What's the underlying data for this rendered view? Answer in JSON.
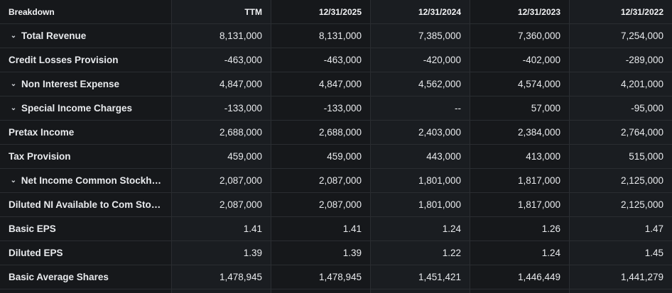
{
  "columns": [
    "Breakdown",
    "TTM",
    "12/31/2025",
    "12/31/2024",
    "12/31/2023",
    "12/31/2022"
  ],
  "rows": [
    {
      "label": "Total Revenue",
      "expand": "⌄",
      "values": [
        "8,131,000",
        "8,131,000",
        "7,385,000",
        "7,360,000",
        "7,254,000"
      ]
    },
    {
      "label": "Credit Losses Provision",
      "expand": "",
      "values": [
        "-463,000",
        "-463,000",
        "-420,000",
        "-402,000",
        "-289,000"
      ]
    },
    {
      "label": "Non Interest Expense",
      "expand": "⌄",
      "values": [
        "4,847,000",
        "4,847,000",
        "4,562,000",
        "4,574,000",
        "4,201,000"
      ]
    },
    {
      "label": "Special Income Charges",
      "expand": "⌄",
      "values": [
        "-133,000",
        "-133,000",
        "--",
        "57,000",
        "-95,000"
      ]
    },
    {
      "label": "Pretax Income",
      "expand": "",
      "values": [
        "2,688,000",
        "2,688,000",
        "2,403,000",
        "2,384,000",
        "2,764,000"
      ]
    },
    {
      "label": "Tax Provision",
      "expand": "",
      "values": [
        "459,000",
        "459,000",
        "443,000",
        "413,000",
        "515,000"
      ]
    },
    {
      "label": "Net Income Common Stockho...",
      "expand": "⌄",
      "values": [
        "2,087,000",
        "2,087,000",
        "1,801,000",
        "1,817,000",
        "2,125,000"
      ]
    },
    {
      "label": "Diluted NI Available to Com Stoc...",
      "expand": "",
      "values": [
        "2,087,000",
        "2,087,000",
        "1,801,000",
        "1,817,000",
        "2,125,000"
      ]
    },
    {
      "label": "Basic EPS",
      "expand": "",
      "values": [
        "1.41",
        "1.41",
        "1.24",
        "1.26",
        "1.47"
      ]
    },
    {
      "label": "Diluted EPS",
      "expand": "",
      "values": [
        "1.39",
        "1.39",
        "1.22",
        "1.24",
        "1.45"
      ]
    },
    {
      "label": "Basic Average Shares",
      "expand": "",
      "values": [
        "1,478,945",
        "1,478,945",
        "1,451,421",
        "1,446,449",
        "1,441,279"
      ]
    }
  ]
}
